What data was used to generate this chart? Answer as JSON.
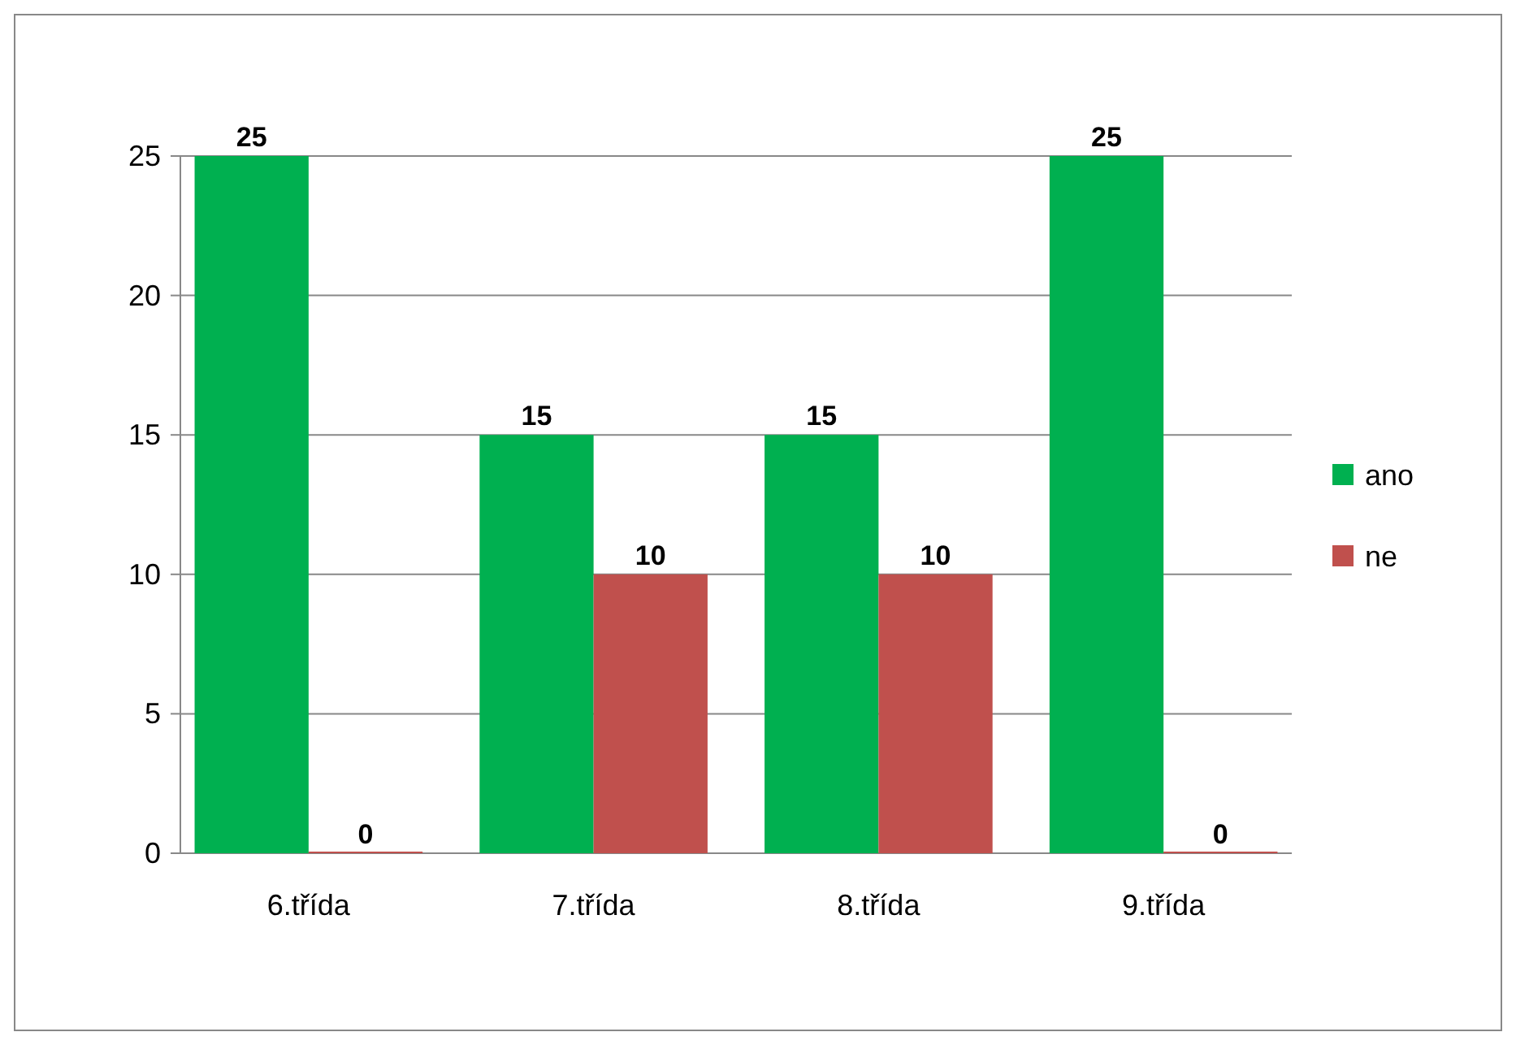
{
  "chart_data": {
    "type": "bar",
    "categories": [
      "6.třída",
      "7.třída",
      "8.třída",
      "9.třída"
    ],
    "series": [
      {
        "name": "ano",
        "color": "#00b050",
        "values": [
          25,
          15,
          15,
          25
        ]
      },
      {
        "name": "ne",
        "color": "#c0504d",
        "values": [
          0,
          10,
          10,
          0
        ]
      }
    ],
    "ylim": [
      0,
      25
    ],
    "yticks": [
      0,
      5,
      10,
      15,
      20,
      25
    ],
    "grid": "y",
    "legend": "right",
    "data_labels": true
  }
}
